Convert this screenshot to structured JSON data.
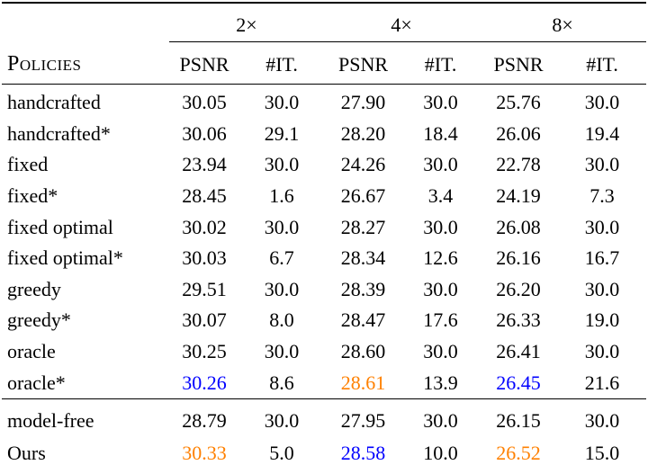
{
  "palette": {
    "blue": "#0000ff",
    "orange": "#ff8000",
    "text": "#000000",
    "rule": "#000000",
    "background": "#ffffff"
  },
  "table": {
    "corner_label": "Policies",
    "groups": [
      "2×",
      "4×",
      "8×"
    ],
    "sub_headers": [
      "PSNR",
      "#IT.",
      "PSNR",
      "#IT.",
      "PSNR",
      "#IT."
    ],
    "sections": [
      {
        "name": "policies",
        "rows": [
          {
            "policy": "handcrafted",
            "values": [
              {
                "t": "30.05"
              },
              {
                "t": "30.0"
              },
              {
                "t": "27.90"
              },
              {
                "t": "30.0"
              },
              {
                "t": "25.76"
              },
              {
                "t": "30.0"
              }
            ]
          },
          {
            "policy": "handcrafted*",
            "values": [
              {
                "t": "30.06"
              },
              {
                "t": "29.1"
              },
              {
                "t": "28.20"
              },
              {
                "t": "18.4"
              },
              {
                "t": "26.06"
              },
              {
                "t": "19.4"
              }
            ]
          },
          {
            "policy": "fixed",
            "values": [
              {
                "t": "23.94"
              },
              {
                "t": "30.0"
              },
              {
                "t": "24.26"
              },
              {
                "t": "30.0"
              },
              {
                "t": "22.78"
              },
              {
                "t": "30.0"
              }
            ]
          },
          {
            "policy": "fixed*",
            "values": [
              {
                "t": "28.45"
              },
              {
                "t": "1.6"
              },
              {
                "t": "26.67"
              },
              {
                "t": "3.4"
              },
              {
                "t": "24.19"
              },
              {
                "t": "7.3"
              }
            ]
          },
          {
            "policy": "fixed optimal",
            "values": [
              {
                "t": "30.02"
              },
              {
                "t": "30.0"
              },
              {
                "t": "28.27"
              },
              {
                "t": "30.0"
              },
              {
                "t": "26.08"
              },
              {
                "t": "30.0"
              }
            ]
          },
          {
            "policy": "fixed optimal*",
            "values": [
              {
                "t": "30.03"
              },
              {
                "t": "6.7"
              },
              {
                "t": "28.34"
              },
              {
                "t": "12.6"
              },
              {
                "t": "26.16"
              },
              {
                "t": "16.7"
              }
            ]
          },
          {
            "policy": "greedy",
            "values": [
              {
                "t": "29.51"
              },
              {
                "t": "30.0"
              },
              {
                "t": "28.39"
              },
              {
                "t": "30.0"
              },
              {
                "t": "26.20"
              },
              {
                "t": "30.0"
              }
            ]
          },
          {
            "policy": "greedy*",
            "values": [
              {
                "t": "30.07"
              },
              {
                "t": "8.0"
              },
              {
                "t": "28.47"
              },
              {
                "t": "17.6"
              },
              {
                "t": "26.33"
              },
              {
                "t": "19.0"
              }
            ]
          },
          {
            "policy": "oracle",
            "values": [
              {
                "t": "30.25"
              },
              {
                "t": "30.0"
              },
              {
                "t": "28.60"
              },
              {
                "t": "30.0"
              },
              {
                "t": "26.41"
              },
              {
                "t": "30.0"
              }
            ]
          },
          {
            "policy": "oracle*",
            "values": [
              {
                "t": "30.26",
                "c": "blue"
              },
              {
                "t": "8.6"
              },
              {
                "t": "28.61",
                "c": "orange"
              },
              {
                "t": "13.9"
              },
              {
                "t": "26.45",
                "c": "blue"
              },
              {
                "t": "21.6"
              }
            ]
          }
        ]
      },
      {
        "name": "baselines",
        "rows": [
          {
            "policy": "model-free",
            "values": [
              {
                "t": "28.79"
              },
              {
                "t": "30.0"
              },
              {
                "t": "27.95"
              },
              {
                "t": "30.0"
              },
              {
                "t": "26.15"
              },
              {
                "t": "30.0"
              }
            ]
          },
          {
            "policy": "Ours",
            "values": [
              {
                "t": "30.33",
                "c": "orange"
              },
              {
                "t": "5.0"
              },
              {
                "t": "28.58",
                "c": "blue"
              },
              {
                "t": "10.0"
              },
              {
                "t": "26.52",
                "c": "orange"
              },
              {
                "t": "15.0"
              }
            ]
          }
        ]
      }
    ]
  }
}
